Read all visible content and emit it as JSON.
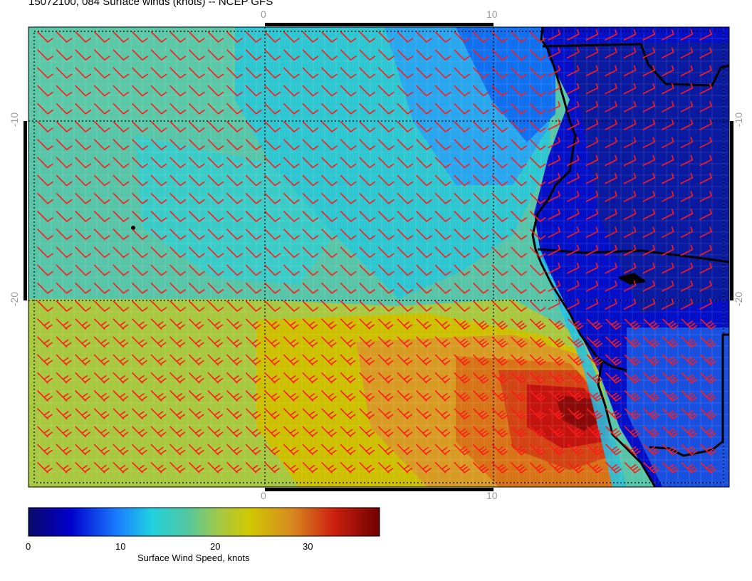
{
  "title": "15072100, 084 Surface winds (knots) -- NCEP GFS",
  "map": {
    "top_ticks": [
      "0",
      "10"
    ],
    "bottom_ticks": [
      "0",
      "10"
    ],
    "left_ticks": [
      "-10",
      "-20"
    ],
    "right_ticks": [
      "-10",
      "-20"
    ],
    "barb_color": "#ff1a1a",
    "coast_color": "#000000"
  },
  "colorbar": {
    "labels": [
      "0",
      "10",
      "20",
      "30"
    ],
    "title": "Surface Wind Speed, knots",
    "colors": [
      "#0a0a8c",
      "#0000cc",
      "#1060ff",
      "#30b0ff",
      "#20d0d0",
      "#40c8a0",
      "#a0c840",
      "#d0c800",
      "#d89a20",
      "#d86a10",
      "#c81810",
      "#800000"
    ]
  }
}
